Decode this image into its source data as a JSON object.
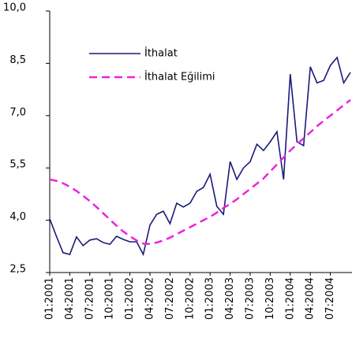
{
  "chart_data": {
    "type": "line",
    "categories": [
      "01:2001",
      null,
      null,
      "04:2001",
      null,
      null,
      "07:2001",
      null,
      null,
      "10:2001",
      null,
      null,
      "01:2002",
      null,
      null,
      "04:2002",
      null,
      null,
      "07:2002",
      null,
      null,
      "10:2002",
      null,
      null,
      "01:2003",
      null,
      null,
      "04:2003",
      null,
      null,
      "07:2003",
      null,
      null,
      "10:2003",
      null,
      null,
      "01:2004",
      null,
      null,
      "04:2004",
      null,
      null,
      "07:2004",
      null,
      null,
      null
    ],
    "series": [
      {
        "name": "İthalat",
        "color": "#1a1a7a",
        "dash": false,
        "values": [
          4.04,
          3.54,
          3.07,
          3.02,
          3.52,
          3.27,
          3.43,
          3.47,
          3.36,
          3.31,
          3.54,
          3.45,
          3.38,
          3.38,
          3.02,
          3.86,
          4.17,
          4.26,
          3.9,
          4.49,
          4.38,
          4.49,
          4.83,
          4.94,
          5.32,
          4.4,
          4.17,
          5.68,
          5.17,
          5.5,
          5.68,
          6.18,
          6.0,
          6.25,
          6.54,
          5.17,
          8.19,
          6.25,
          6.14,
          8.4,
          7.94,
          8.01,
          8.44,
          8.67,
          7.94,
          8.24
        ]
      },
      {
        "name": "İthalat Eğilimi",
        "color": "#ee22dd",
        "dash": true,
        "values": [
          5.17,
          5.13,
          5.06,
          4.96,
          4.84,
          4.7,
          4.55,
          4.38,
          4.2,
          4.02,
          3.84,
          3.68,
          3.54,
          3.42,
          3.33,
          3.32,
          3.36,
          3.42,
          3.5,
          3.6,
          3.7,
          3.8,
          3.9,
          4.0,
          4.1,
          4.22,
          4.35,
          4.47,
          4.6,
          4.75,
          4.9,
          5.05,
          5.2,
          5.4,
          5.6,
          5.8,
          6.0,
          6.18,
          6.35,
          6.52,
          6.7,
          6.85,
          7.0,
          7.15,
          7.3,
          7.45
        ]
      }
    ],
    "ylim": [
      2.5,
      10
    ],
    "yticks": [
      {
        "value": 2.5,
        "label": "2,5"
      },
      {
        "value": 4,
        "label": "4,0"
      },
      {
        "value": 5.5,
        "label": "5,5"
      },
      {
        "value": 7,
        "label": "7,0"
      },
      {
        "value": 8.5,
        "label": "8,5"
      },
      {
        "value": 10,
        "label": "10,0"
      }
    ]
  }
}
